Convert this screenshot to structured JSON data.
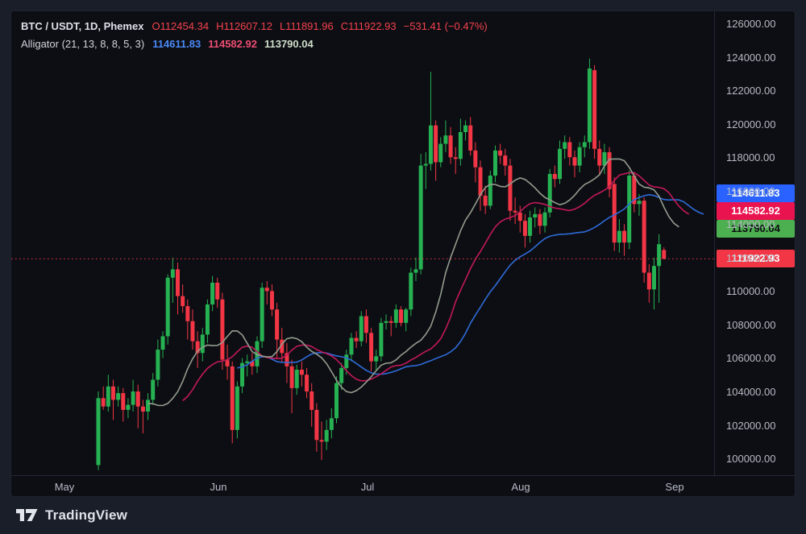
{
  "header": {
    "symbol": "BTC / USDT, 1D, Phemex",
    "tokens": [
      {
        "label": "O",
        "value": "112454.34"
      },
      {
        "label": "H",
        "value": "112607.12"
      },
      {
        "label": "L",
        "value": "111891.96"
      },
      {
        "label": "C",
        "value": "111922.93"
      }
    ],
    "change": "−531.41 (−0.47%)"
  },
  "indicator": {
    "title": "Alligator (21, 13, 8, 8, 5, 3)",
    "jaw_value": "114611.83",
    "teeth_value": "114582.92",
    "lips_value": "113790.04"
  },
  "price_axis": {
    "ticks": [
      "126000.00",
      "124000.00",
      "122000.00",
      "120000.00",
      "118000.00",
      "116000.00",
      "114000.00",
      "112000.00",
      "110000.00",
      "108000.00",
      "106000.00",
      "104000.00",
      "102000.00",
      "100000.00"
    ],
    "labels": {
      "jaw": "114611.83",
      "teeth": "114582.92",
      "lips": "113790.04",
      "last": "111922.93"
    }
  },
  "time_axis": {
    "months": [
      "May",
      "Jun",
      "Jul",
      "Aug",
      "Sep"
    ]
  },
  "attribution": {
    "brand": "TradingView"
  },
  "colors": {
    "up": "#26b152",
    "down": "#f23645",
    "jaw_line": "#2e6bd8",
    "teeth_line": "#c2185b",
    "lips_line": "#939c8e",
    "jaw_label_bg": "#2962ff",
    "teeth_label_bg": "#e9134f",
    "lips_label_bg": "#4caf50",
    "last_label_bg": "#f23645",
    "last_line": "#f23645",
    "legend_jaw": "#4b8af8",
    "legend_teeth": "#ec4d72",
    "legend_lips": "#cfdecb"
  },
  "chart_data": {
    "type": "candlestick",
    "title": "BTC / USDT, 1D, Phemex",
    "interval": "1D",
    "exchange": "Phemex",
    "legend_position": "top-left",
    "grid": false,
    "x_months": [
      "May",
      "Jun",
      "Jul",
      "Aug",
      "Sep"
    ],
    "ylim": [
      98995,
      126722
    ],
    "price_ticks": [
      126000,
      124000,
      122000,
      120000,
      118000,
      116000,
      114000,
      112000,
      110000,
      108000,
      106000,
      104000,
      102000,
      100000
    ],
    "last": {
      "open": 112454.34,
      "high": 112607.12,
      "low": 111891.96,
      "close": 111922.93,
      "change": -531.41,
      "change_pct": -0.47
    },
    "alligator": {
      "jaw": {
        "length": 21,
        "offset": 8,
        "value": 114611.83
      },
      "teeth": {
        "length": 13,
        "offset": 5,
        "value": 114582.92
      },
      "lips": {
        "length": 8,
        "offset": 3,
        "value": 113790.04
      }
    },
    "candles": [
      [
        99600,
        104000,
        99300,
        103600
      ],
      [
        103600,
        104300,
        102900,
        103100
      ],
      [
        103100,
        105000,
        102800,
        104300
      ],
      [
        104300,
        104700,
        102300,
        103500
      ],
      [
        103500,
        104300,
        103100,
        103900
      ],
      [
        103900,
        104200,
        102200,
        102900
      ],
      [
        102900,
        103600,
        102400,
        103200
      ],
      [
        103200,
        104700,
        102800,
        104000
      ],
      [
        104000,
        104400,
        101800,
        103100
      ],
      [
        103100,
        103500,
        101500,
        102800
      ],
      [
        102800,
        103900,
        102300,
        103500
      ],
      [
        103500,
        105100,
        103200,
        104700
      ],
      [
        104700,
        107100,
        104300,
        106500
      ],
      [
        106500,
        107600,
        106000,
        107300
      ],
      [
        107300,
        111000,
        106800,
        110800
      ],
      [
        110800,
        112000,
        109300,
        111300
      ],
      [
        111300,
        111700,
        108600,
        109700
      ],
      [
        109700,
        110400,
        108700,
        109100
      ],
      [
        109100,
        109500,
        107100,
        108200
      ],
      [
        108200,
        108900,
        106500,
        107000
      ],
      [
        107000,
        107600,
        105400,
        106300
      ],
      [
        106300,
        107800,
        105800,
        107400
      ],
      [
        107400,
        109500,
        106900,
        109200
      ],
      [
        109200,
        110900,
        108800,
        110500
      ],
      [
        110500,
        110800,
        109000,
        109500
      ],
      [
        109500,
        109900,
        105300,
        105900
      ],
      [
        105900,
        106800,
        104700,
        105500
      ],
      [
        105500,
        105800,
        100900,
        101700
      ],
      [
        101700,
        104600,
        101200,
        104300
      ],
      [
        104300,
        106000,
        103900,
        105700
      ],
      [
        105700,
        106200,
        104900,
        105800
      ],
      [
        105800,
        106300,
        105000,
        105500
      ],
      [
        105500,
        107300,
        105100,
        107000
      ],
      [
        107000,
        110500,
        106600,
        110200
      ],
      [
        110200,
        110600,
        109200,
        110000
      ],
      [
        110000,
        110400,
        108500,
        108900
      ],
      [
        108900,
        109300,
        106000,
        107100
      ],
      [
        107100,
        107800,
        105700,
        106300
      ],
      [
        106300,
        106900,
        104500,
        105500
      ],
      [
        105500,
        105900,
        102700,
        104200
      ],
      [
        104200,
        105600,
        103800,
        105300
      ],
      [
        105300,
        105800,
        104300,
        105000
      ],
      [
        105000,
        105400,
        103600,
        104000
      ],
      [
        104000,
        104500,
        101900,
        102900
      ],
      [
        102900,
        103300,
        100400,
        101100
      ],
      [
        101100,
        102200,
        99900,
        101000
      ],
      [
        101000,
        102300,
        100500,
        101700
      ],
      [
        101700,
        103000,
        101200,
        102400
      ],
      [
        102400,
        104900,
        102100,
        104500
      ],
      [
        104500,
        105700,
        104100,
        105400
      ],
      [
        105400,
        106500,
        105000,
        106200
      ],
      [
        106200,
        107500,
        105800,
        107200
      ],
      [
        107200,
        107600,
        106600,
        107000
      ],
      [
        107000,
        108800,
        106700,
        108500
      ],
      [
        108500,
        108900,
        106900,
        107500
      ],
      [
        107500,
        107800,
        105200,
        105800
      ],
      [
        105800,
        106500,
        105300,
        106100
      ],
      [
        106100,
        108400,
        105800,
        108100
      ],
      [
        108100,
        108600,
        107700,
        108200
      ],
      [
        108200,
        108500,
        107300,
        108100
      ],
      [
        108100,
        109200,
        107800,
        108900
      ],
      [
        108900,
        109100,
        107900,
        108100
      ],
      [
        108100,
        109000,
        107600,
        108900
      ],
      [
        108900,
        111400,
        108500,
        111100
      ],
      [
        111100,
        112000,
        110600,
        111300
      ],
      [
        111300,
        118200,
        111000,
        117500
      ],
      [
        117500,
        118300,
        116100,
        117600
      ],
      [
        117600,
        123100,
        117200,
        119900
      ],
      [
        119900,
        120200,
        116600,
        117700
      ],
      [
        117700,
        119200,
        117400,
        118800
      ],
      [
        118800,
        120200,
        118300,
        119300
      ],
      [
        119300,
        119800,
        117600,
        118000
      ],
      [
        118000,
        118600,
        117000,
        117900
      ],
      [
        117900,
        120300,
        117500,
        119500
      ],
      [
        119500,
        120200,
        119000,
        119900
      ],
      [
        119900,
        120400,
        118100,
        118400
      ],
      [
        118400,
        118900,
        116500,
        117400
      ],
      [
        117400,
        117800,
        114800,
        115700
      ],
      [
        115700,
        116300,
        114600,
        115100
      ],
      [
        115100,
        117200,
        114900,
        116900
      ],
      [
        116900,
        118700,
        116500,
        118400
      ],
      [
        118400,
        118800,
        117600,
        118100
      ],
      [
        118100,
        118500,
        116900,
        117500
      ],
      [
        117500,
        117900,
        114200,
        114800
      ],
      [
        114800,
        115600,
        114000,
        114700
      ],
      [
        114700,
        115100,
        113500,
        114200
      ],
      [
        114200,
        114600,
        112600,
        113300
      ],
      [
        113300,
        114800,
        112900,
        114400
      ],
      [
        114400,
        115000,
        113800,
        114600
      ],
      [
        114600,
        114900,
        113400,
        113900
      ],
      [
        113900,
        115000,
        113500,
        114700
      ],
      [
        114700,
        117300,
        114400,
        117000
      ],
      [
        117000,
        117500,
        116200,
        116700
      ],
      [
        116700,
        119000,
        116400,
        118500
      ],
      [
        118500,
        119300,
        117900,
        118900
      ],
      [
        118900,
        119200,
        117500,
        118000
      ],
      [
        118000,
        118400,
        116800,
        117500
      ],
      [
        117500,
        118900,
        117100,
        118600
      ],
      [
        118600,
        119300,
        118000,
        118900
      ],
      [
        118900,
        123900,
        118500,
        123300
      ],
      [
        123200,
        123500,
        117900,
        118500
      ],
      [
        118500,
        119000,
        116900,
        117500
      ],
      [
        117500,
        118800,
        117000,
        118300
      ],
      [
        118300,
        118600,
        115600,
        116100
      ],
      [
        116400,
        116800,
        112400,
        112900
      ],
      [
        112900,
        114300,
        112300,
        113600
      ],
      [
        113600,
        114000,
        112100,
        112900
      ],
      [
        112900,
        117200,
        112500,
        116900
      ],
      [
        116900,
        117100,
        114700,
        115200
      ],
      [
        115200,
        115800,
        114500,
        115400
      ],
      [
        115400,
        115600,
        110500,
        111100
      ],
      [
        111100,
        111600,
        109300,
        110100
      ],
      [
        110100,
        112000,
        108900,
        111500
      ],
      [
        111500,
        113400,
        109300,
        112800
      ],
      [
        112454.34,
        112607.12,
        111891.96,
        111922.93
      ]
    ]
  }
}
